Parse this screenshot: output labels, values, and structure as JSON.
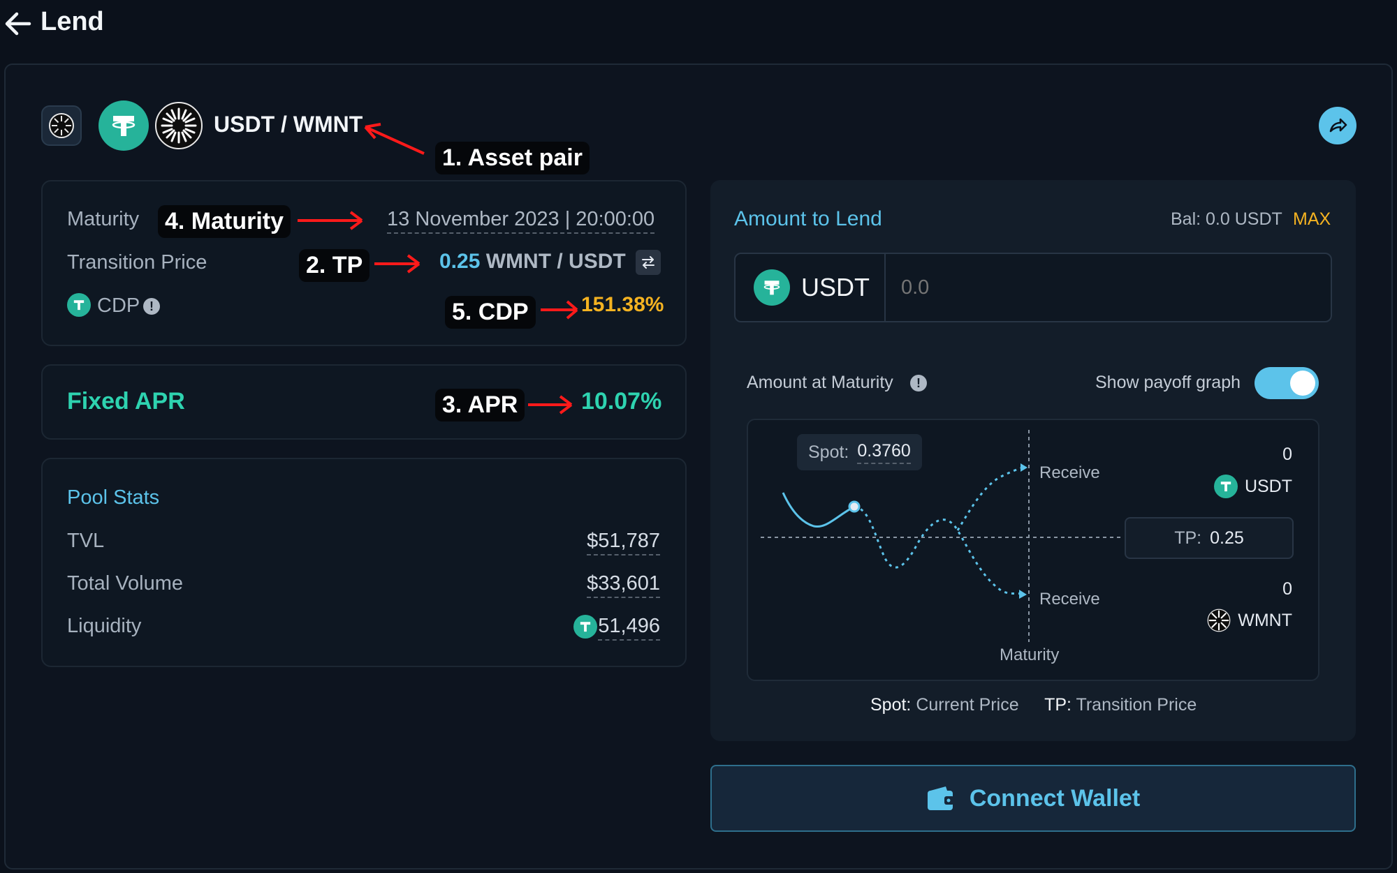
{
  "header": {
    "title": "Lend"
  },
  "pair": {
    "title": "USDT / WMNT"
  },
  "annotations": {
    "asset_pair": "1. Asset pair",
    "tp": "2. TP",
    "apr": "3. APR",
    "maturity": "4. Maturity",
    "cdp": "5. CDP"
  },
  "info": {
    "maturity_label": "Maturity",
    "maturity_value": "13 November 2023 | 20:00:00",
    "tp_label": "Transition Price",
    "tp_value": "0.25",
    "tp_unit": "WMNT / USDT",
    "cdp_label": "CDP",
    "cdp_value": "151.38%"
  },
  "apr": {
    "label": "Fixed APR",
    "value": "10.07%"
  },
  "stats": {
    "title": "Pool Stats",
    "rows": [
      {
        "label": "TVL",
        "value": "$51,787"
      },
      {
        "label": "Total Volume",
        "value": "$33,601"
      },
      {
        "label": "Liquidity",
        "value": "51,496"
      }
    ]
  },
  "lend": {
    "title": "Amount to Lend",
    "balance": "Bal: 0.0 USDT",
    "max_label": "MAX",
    "token": "USDT",
    "input_placeholder": "0.0",
    "maturity_label": "Amount at Maturity",
    "payoff_toggle_label": "Show payoff graph",
    "payoff_toggle_on": true
  },
  "graph": {
    "spot_label": "Spot:",
    "spot_value": "0.3760",
    "receive_top": "Receive",
    "receive_bottom": "Receive",
    "usdt_amount": "0",
    "usdt_label": "USDT",
    "wmnt_amount": "0",
    "wmnt_label": "WMNT",
    "tp_label": "TP:",
    "tp_value": "0.25",
    "maturity_label": "Maturity"
  },
  "legend": {
    "spot_key": "Spot:",
    "spot_desc": "Current Price",
    "tp_key": "TP:",
    "tp_desc": "Transition Price"
  },
  "connect_label": "Connect Wallet",
  "colors": {
    "accent": "#5cc3ea",
    "apr": "#2ed3b0",
    "cdp": "#f5b321",
    "usdt": "#26b39a",
    "annotation": "#ff1a1a"
  }
}
